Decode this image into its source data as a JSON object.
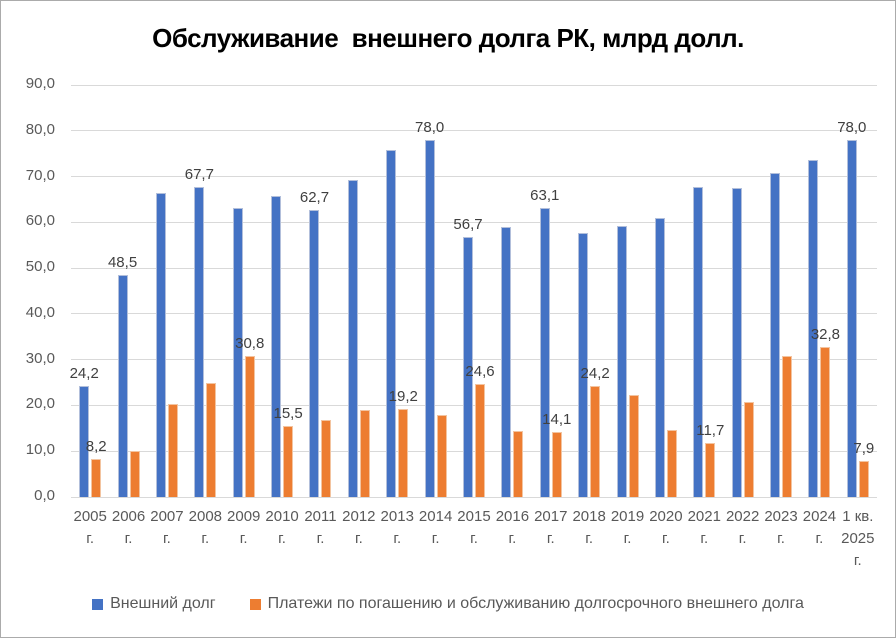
{
  "window": {
    "background": "#ffffff",
    "border_color": "#ababab"
  },
  "chart_data": {
    "type": "bar",
    "title": "Обслуживание  внешнего долга РК, млрд долл.",
    "xlabel": "",
    "ylabel": "",
    "ylim": [
      0,
      90
    ],
    "ytick_step": 10,
    "grid": true,
    "legend_position": "bottom",
    "decimal_separator": ",",
    "yticks": [
      {
        "v": 90,
        "label": "90,0"
      },
      {
        "v": 80,
        "label": "80,0"
      },
      {
        "v": 70,
        "label": "70,0"
      },
      {
        "v": 60,
        "label": "60,0"
      },
      {
        "v": 50,
        "label": "50,0"
      },
      {
        "v": 40,
        "label": "40,0"
      },
      {
        "v": 30,
        "label": "30,0"
      },
      {
        "v": 20,
        "label": "20,0"
      },
      {
        "v": 10,
        "label": "10,0"
      },
      {
        "v": 0,
        "label": "0,0"
      }
    ],
    "categories": [
      "2005 г.",
      "2006 г.",
      "2007 г.",
      "2008 г.",
      "2009 г.",
      "2010 г.",
      "2011 г.",
      "2012 г.",
      "2013 г.",
      "2014 г.",
      "2015 г.",
      "2016 г.",
      "2017 г.",
      "2018 г.",
      "2019 г.",
      "2020 г.",
      "2021 г.",
      "2022 г.",
      "2023 г.",
      "2024 г.",
      "1 кв. 2025 г."
    ],
    "xtick_lines": [
      [
        "2005",
        "г."
      ],
      [
        "2006",
        "г."
      ],
      [
        "2007",
        "г."
      ],
      [
        "2008",
        "г."
      ],
      [
        "2009",
        "г."
      ],
      [
        "2010",
        "г."
      ],
      [
        "2011",
        "г."
      ],
      [
        "2012",
        "г."
      ],
      [
        "2013",
        "г."
      ],
      [
        "2014",
        "г."
      ],
      [
        "2015",
        "г."
      ],
      [
        "2016",
        "г."
      ],
      [
        "2017",
        "г."
      ],
      [
        "2018",
        "г."
      ],
      [
        "2019",
        "г."
      ],
      [
        "2020",
        "г."
      ],
      [
        "2021",
        "г."
      ],
      [
        "2022",
        "г."
      ],
      [
        "2023",
        "г."
      ],
      [
        "2024",
        "г."
      ],
      [
        "1 кв.",
        "2025",
        "г."
      ]
    ],
    "series": [
      {
        "name": "Внешний долг",
        "color": "#4472C4",
        "border_color": "#b2bfdb",
        "values": [
          24.2,
          48.5,
          66.5,
          67.7,
          63.2,
          65.8,
          62.7,
          69.2,
          75.9,
          78.0,
          56.7,
          58.9,
          63.1,
          57.7,
          59.2,
          61.0,
          67.8,
          67.6,
          70.8,
          73.7,
          78.0
        ],
        "labels": [
          "24,2",
          "48,5",
          null,
          "67,7",
          null,
          null,
          "62,7",
          null,
          null,
          "78,0",
          "56,7",
          null,
          "63,1",
          null,
          null,
          null,
          null,
          null,
          null,
          null,
          "78,0"
        ]
      },
      {
        "name": "Платежи по погашению и обслуживанию долгосрочного внешнего долга",
        "color": "#ED7D31",
        "border_color": "#f3c4a0",
        "values": [
          8.2,
          10.1,
          20.4,
          24.8,
          30.8,
          15.5,
          16.8,
          18.9,
          19.2,
          17.9,
          24.6,
          14.5,
          14.1,
          24.2,
          22.2,
          14.6,
          11.7,
          20.8,
          30.9,
          32.8,
          7.9
        ],
        "labels": [
          "8,2",
          null,
          null,
          null,
          "30,8",
          "15,5",
          null,
          null,
          "19,2",
          null,
          "24,6",
          null,
          "14,1",
          "24,2",
          null,
          null,
          "11,7",
          null,
          null,
          "32,8",
          "7,9"
        ]
      }
    ],
    "colors": {
      "gridline": "#d9d9d9",
      "axis_text": "#595959",
      "data_label_text": "#404040",
      "title_text": "#000000",
      "legend_text": "#595959"
    }
  }
}
